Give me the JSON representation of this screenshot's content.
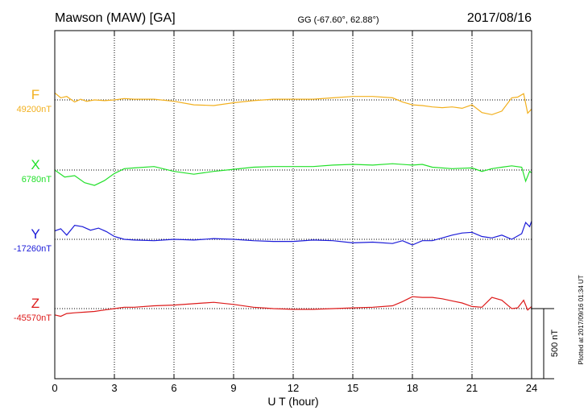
{
  "chart_data": {
    "type": "line",
    "station": "Mawson (MAW)  [GA]",
    "coords": "GG (-67.60°,  62.88°)",
    "date": "2017/08/16",
    "xlabel": "U T (hour)",
    "xlim": [
      0,
      24
    ],
    "xticks": [
      0,
      3,
      6,
      9,
      12,
      15,
      18,
      21,
      24
    ],
    "x_tick_labels": [
      "0",
      "3",
      "6",
      "9",
      "12",
      "15",
      "18",
      "21",
      "24"
    ],
    "scale_bar_label": "500 nT",
    "scale_bar_nT": 500,
    "plotted_note": "Plotted at 2017/09/16 01:34 UT",
    "grid": true,
    "series": [
      {
        "name": "F",
        "baseline_label": "49200nT",
        "baseline_nT": 49200,
        "color": "#f2b01e",
        "x": [
          0,
          0.3,
          0.6,
          1,
          1.3,
          1.6,
          2,
          2.5,
          3,
          3.5,
          4,
          5,
          6,
          7,
          8,
          9,
          10,
          11,
          12,
          13,
          14,
          15,
          16,
          17,
          17.5,
          18,
          18.5,
          19,
          19.5,
          20,
          20.5,
          21,
          21.5,
          22,
          22.5,
          23,
          23.3,
          23.6,
          23.8,
          24
        ],
        "values": [
          49250,
          49215,
          49225,
          49185,
          49205,
          49190,
          49200,
          49195,
          49200,
          49210,
          49205,
          49205,
          49190,
          49165,
          49160,
          49180,
          49195,
          49205,
          49205,
          49205,
          49215,
          49225,
          49225,
          49215,
          49185,
          49165,
          49160,
          49150,
          49145,
          49150,
          49140,
          49165,
          49110,
          49095,
          49120,
          49215,
          49220,
          49245,
          49105,
          49135
        ]
      },
      {
        "name": "X",
        "baseline_label": "6780nT",
        "baseline_nT": 6780,
        "color": "#22e02a",
        "x": [
          0,
          0.5,
          1,
          1.5,
          2,
          2.5,
          3,
          3.5,
          4,
          5,
          6,
          7,
          8,
          9,
          10,
          11,
          12,
          13,
          14,
          15,
          16,
          17,
          18,
          18.5,
          19,
          20,
          21,
          21.5,
          22,
          22.5,
          23,
          23.5,
          23.7,
          23.9,
          24
        ],
        "values": [
          6780,
          6730,
          6740,
          6690,
          6670,
          6705,
          6755,
          6790,
          6795,
          6805,
          6770,
          6750,
          6770,
          6785,
          6800,
          6805,
          6805,
          6805,
          6815,
          6820,
          6815,
          6825,
          6815,
          6820,
          6800,
          6790,
          6795,
          6770,
          6790,
          6800,
          6810,
          6800,
          6700,
          6770,
          6760
        ]
      },
      {
        "name": "Y",
        "baseline_label": "-17260nT",
        "baseline_nT": -17260,
        "color": "#1a1ad8",
        "x": [
          0,
          0.3,
          0.6,
          1,
          1.4,
          1.8,
          2.2,
          2.6,
          3,
          3.5,
          4,
          5,
          6,
          7,
          8,
          9,
          10,
          11,
          12,
          13,
          14,
          15,
          16,
          17,
          17.5,
          18,
          18.5,
          19,
          19.5,
          20,
          20.5,
          21,
          21.5,
          22,
          22.5,
          23,
          23.5,
          23.7,
          23.9,
          24
        ],
        "values": [
          -17200,
          -17185,
          -17230,
          -17160,
          -17170,
          -17195,
          -17180,
          -17205,
          -17240,
          -17260,
          -17265,
          -17270,
          -17260,
          -17265,
          -17255,
          -17260,
          -17270,
          -17275,
          -17275,
          -17265,
          -17270,
          -17285,
          -17280,
          -17290,
          -17270,
          -17300,
          -17270,
          -17270,
          -17250,
          -17230,
          -17215,
          -17210,
          -17240,
          -17250,
          -17230,
          -17260,
          -17220,
          -17140,
          -17170,
          -17130
        ]
      },
      {
        "name": "Z",
        "baseline_label": "-45570nT",
        "baseline_nT": -45570,
        "color": "#dd1a1a",
        "x": [
          0,
          0.3,
          0.6,
          1,
          1.5,
          2,
          2.5,
          3,
          3.5,
          4,
          5,
          6,
          7,
          8,
          9,
          10,
          11,
          12,
          13,
          14,
          15,
          16,
          17,
          17.5,
          18,
          18.5,
          19,
          19.5,
          20,
          20.5,
          21,
          21.5,
          22,
          22.5,
          23,
          23.3,
          23.6,
          23.8,
          24
        ],
        "values": [
          -45615,
          -45625,
          -45605,
          -45600,
          -45595,
          -45590,
          -45580,
          -45570,
          -45560,
          -45560,
          -45550,
          -45545,
          -45535,
          -45525,
          -45540,
          -45560,
          -45570,
          -45575,
          -45575,
          -45570,
          -45565,
          -45560,
          -45550,
          -45520,
          -45485,
          -45490,
          -45490,
          -45500,
          -45515,
          -45530,
          -45555,
          -45560,
          -45490,
          -45510,
          -45570,
          -45565,
          -45510,
          -45580,
          -45555
        ]
      }
    ]
  }
}
